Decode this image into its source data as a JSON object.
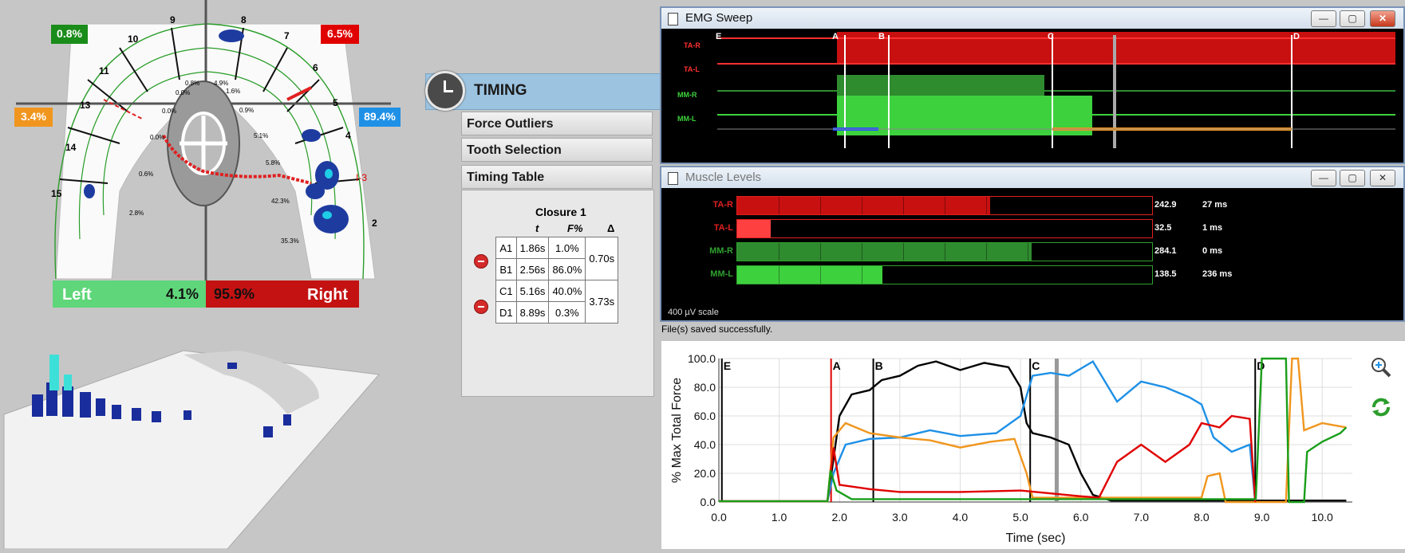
{
  "arch_view": {
    "pct_top_left": "0.8%",
    "pct_top_right": "6.5%",
    "pct_mid_left": "3.4%",
    "pct_mid_right": "89.4%",
    "tooth_numbers": [
      "9",
      "8",
      "10",
      "7",
      "11",
      "6",
      "13",
      "5",
      "14",
      "4",
      "15",
      "2"
    ],
    "marker_label": "I-3",
    "inner_pcts": [
      "0.8%",
      "4.9%",
      "0.0%",
      "1.6%",
      "0.0%",
      "0.9%",
      "0.0%",
      "5.1%",
      "5.8%",
      "0.6%",
      "2.8%",
      "42.3%",
      "35.3%"
    ],
    "left_label": "Left",
    "left_pct": "4.1%",
    "right_pct": "95.9%",
    "right_label": "Right",
    "colors": {
      "green": "#1a8c1a",
      "red": "#e00000",
      "orange": "#f0961e",
      "blue": "#1e90e6",
      "left_bar": "#5fd67a",
      "right_bar": "#c41212"
    }
  },
  "timing": {
    "title": "TIMING",
    "menu": [
      "Force Outliers",
      "Tooth Selection",
      "Timing Table"
    ],
    "closure_title": "Closure 1",
    "headers": [
      "t",
      "F%",
      "Δ"
    ],
    "rows": [
      {
        "label": "A1",
        "t": "1.86s",
        "f": "1.0%"
      },
      {
        "label": "B1",
        "t": "2.56s",
        "f": "86.0%"
      },
      {
        "label": "C1",
        "t": "5.16s",
        "f": "40.0%"
      },
      {
        "label": "D1",
        "t": "8.89s",
        "f": "0.3%"
      }
    ],
    "deltas": [
      "0.70s",
      "3.73s"
    ]
  },
  "emg_sweep": {
    "title": "EMG Sweep",
    "channels": [
      "TA-R",
      "TA-L",
      "MM-R",
      "MM-L"
    ],
    "markers": [
      "E",
      "A",
      "B",
      "C",
      "D"
    ]
  },
  "muscle_levels": {
    "title": "Muscle Levels",
    "scale_label": "400 µV scale",
    "rows": [
      {
        "name": "TA-R",
        "value": "242.9",
        "ms": "27 ms",
        "level": 0.61,
        "color": "#c81010",
        "border": "#e02020"
      },
      {
        "name": "TA-L",
        "value": "32.5",
        "ms": "1 ms",
        "level": 0.08,
        "color": "#ff4040",
        "border": "#e02020"
      },
      {
        "name": "MM-R",
        "value": "284.1",
        "ms": "0 ms",
        "level": 0.71,
        "color": "#2e8b2e",
        "border": "#2fa02f"
      },
      {
        "name": "MM-L",
        "value": "138.5",
        "ms": "236 ms",
        "level": 0.35,
        "color": "#3ed13e",
        "border": "#2fa02f"
      }
    ]
  },
  "status_text": "File(s) saved successfully.",
  "chart_data": {
    "type": "line",
    "xlabel": "Time (sec)",
    "ylabel": "% Max Total Force",
    "xlim": [
      0,
      10.5
    ],
    "ylim": [
      0,
      100
    ],
    "x_ticks": [
      "0.0",
      "1.0",
      "2.0",
      "3.0",
      "4.0",
      "5.0",
      "6.0",
      "7.0",
      "8.0",
      "9.0",
      "10.0"
    ],
    "y_ticks": [
      "0.0",
      "20.0",
      "40.0",
      "60.0",
      "80.0",
      "100.0"
    ],
    "markers": [
      {
        "label": "E",
        "x": 0.05,
        "color": "#000000"
      },
      {
        "label": "A",
        "x": 1.86,
        "color": "#e00000"
      },
      {
        "label": "B",
        "x": 2.56,
        "color": "#000000"
      },
      {
        "label": "C",
        "x": 5.16,
        "color": "#000000"
      },
      {
        "label": "D",
        "x": 8.89,
        "color": "#000000"
      }
    ],
    "series": [
      {
        "color": "#000000",
        "points": [
          [
            0,
            0.5
          ],
          [
            1.8,
            0.5
          ],
          [
            1.9,
            30
          ],
          [
            2.0,
            60
          ],
          [
            2.2,
            75
          ],
          [
            2.5,
            78
          ],
          [
            2.7,
            85
          ],
          [
            3.0,
            88
          ],
          [
            3.3,
            95
          ],
          [
            3.6,
            98
          ],
          [
            4.0,
            92
          ],
          [
            4.4,
            97
          ],
          [
            4.8,
            94
          ],
          [
            5.0,
            80
          ],
          [
            5.1,
            55
          ],
          [
            5.2,
            48
          ],
          [
            5.5,
            45
          ],
          [
            5.8,
            40
          ],
          [
            6.0,
            20
          ],
          [
            6.2,
            5
          ],
          [
            6.5,
            1
          ],
          [
            10.4,
            1
          ]
        ]
      },
      {
        "color": "#1e90e6",
        "points": [
          [
            0,
            0.5
          ],
          [
            1.8,
            0.5
          ],
          [
            1.9,
            20
          ],
          [
            2.1,
            40
          ],
          [
            2.5,
            44
          ],
          [
            3.0,
            45
          ],
          [
            3.5,
            50
          ],
          [
            4.0,
            46
          ],
          [
            4.6,
            48
          ],
          [
            5.0,
            60
          ],
          [
            5.2,
            88
          ],
          [
            5.5,
            90
          ],
          [
            5.8,
            88
          ],
          [
            6.2,
            98
          ],
          [
            6.6,
            70
          ],
          [
            7.0,
            84
          ],
          [
            7.4,
            80
          ],
          [
            7.8,
            73
          ],
          [
            8.0,
            68
          ],
          [
            8.2,
            45
          ],
          [
            8.5,
            35
          ],
          [
            8.8,
            40
          ],
          [
            8.89,
            0
          ]
        ]
      },
      {
        "color": "#f0961e",
        "points": [
          [
            0,
            0.5
          ],
          [
            1.8,
            0.5
          ],
          [
            1.9,
            45
          ],
          [
            2.1,
            55
          ],
          [
            2.5,
            48
          ],
          [
            3.0,
            45
          ],
          [
            3.5,
            43
          ],
          [
            4.0,
            38
          ],
          [
            4.5,
            42
          ],
          [
            4.9,
            44
          ],
          [
            5.1,
            20
          ],
          [
            5.2,
            3
          ],
          [
            8.0,
            3
          ],
          [
            8.1,
            18
          ],
          [
            8.3,
            20
          ],
          [
            8.4,
            0
          ],
          [
            9.4,
            0
          ],
          [
            9.5,
            100
          ],
          [
            9.6,
            100
          ],
          [
            9.7,
            50
          ],
          [
            10.0,
            55
          ],
          [
            10.4,
            52
          ]
        ]
      },
      {
        "color": "#e00000",
        "points": [
          [
            0,
            0.5
          ],
          [
            1.8,
            0.5
          ],
          [
            1.9,
            38
          ],
          [
            2.0,
            12
          ],
          [
            2.5,
            9
          ],
          [
            3.0,
            7
          ],
          [
            4.0,
            7
          ],
          [
            5.0,
            8
          ],
          [
            5.5,
            6
          ],
          [
            6.0,
            4
          ],
          [
            6.3,
            3
          ],
          [
            6.6,
            28
          ],
          [
            7.0,
            40
          ],
          [
            7.4,
            28
          ],
          [
            7.8,
            40
          ],
          [
            8.0,
            55
          ],
          [
            8.3,
            52
          ],
          [
            8.5,
            60
          ],
          [
            8.8,
            58
          ],
          [
            8.89,
            0
          ]
        ]
      },
      {
        "color": "#1a9e1a",
        "points": [
          [
            0,
            0.5
          ],
          [
            1.8,
            0.5
          ],
          [
            1.85,
            22
          ],
          [
            1.95,
            8
          ],
          [
            2.2,
            2
          ],
          [
            8.9,
            2
          ],
          [
            9.0,
            100
          ],
          [
            9.4,
            100
          ],
          [
            9.45,
            0
          ],
          [
            9.7,
            0
          ],
          [
            9.75,
            35
          ],
          [
            10.0,
            42
          ],
          [
            10.3,
            48
          ],
          [
            10.4,
            52
          ]
        ]
      }
    ]
  },
  "icons": {
    "zoom": "zoom-icon",
    "refresh": "refresh-icon"
  }
}
